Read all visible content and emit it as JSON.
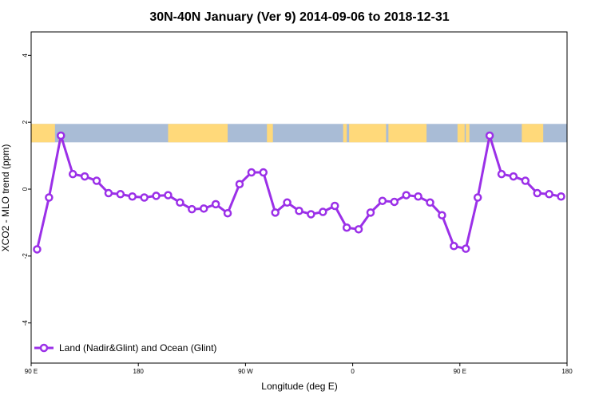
{
  "chart_data": {
    "type": "line",
    "title": "30N-40N January (Ver 9)   2014-09-06 to 2018-12-31",
    "xlabel": "Longitude (deg E)",
    "ylabel": "XCO2 - MLO trend (ppm)",
    "xlim": [
      90,
      540
    ],
    "ylim": [
      -5.2,
      4.7
    ],
    "x_ticks": [
      {
        "value": 90,
        "label": "90 E"
      },
      {
        "value": 180,
        "label": "180"
      },
      {
        "value": 270,
        "label": "90 W"
      },
      {
        "value": 360,
        "label": "0"
      },
      {
        "value": 450,
        "label": "90 E"
      },
      {
        "value": 540,
        "label": "180"
      }
    ],
    "y_ticks": [
      {
        "value": -4,
        "label": "-4"
      },
      {
        "value": -2,
        "label": "-2"
      },
      {
        "value": 0,
        "label": "0"
      },
      {
        "value": 2,
        "label": "2"
      },
      {
        "value": 4,
        "label": "4"
      }
    ],
    "grid": false,
    "legend": {
      "position": "bottom-left"
    },
    "series": [
      {
        "name": "Land (Nadir&Glint) and Ocean (Glint)",
        "color": "#9b30e8",
        "x": [
          95,
          105,
          115,
          125,
          135,
          145,
          155,
          165,
          175,
          185,
          195,
          205,
          215,
          225,
          235,
          245,
          255,
          265,
          275,
          285,
          295,
          305,
          315,
          325,
          335,
          345,
          355,
          365,
          375,
          385,
          395,
          405,
          415,
          425,
          435,
          445,
          455,
          465,
          475,
          485,
          495,
          505,
          515,
          525,
          535
        ],
        "values": [
          -1.8,
          -0.25,
          1.6,
          0.45,
          0.38,
          0.25,
          -0.12,
          -0.15,
          -0.22,
          -0.25,
          -0.2,
          -0.18,
          -0.4,
          -0.6,
          -0.58,
          -0.45,
          -0.72,
          0.15,
          0.5,
          0.5,
          -0.7,
          -0.4,
          -0.65,
          -0.75,
          -0.68,
          -0.5,
          -1.15,
          -1.2,
          -0.7,
          -0.35,
          -0.38,
          -0.18,
          -0.22,
          -0.4,
          -0.78,
          -1.7,
          -1.78,
          -0.25,
          1.6,
          0.45,
          0.38,
          0.25,
          -0.12,
          -0.15,
          -0.22
        ]
      }
    ],
    "map_band": {
      "y_range": [
        1.4,
        1.95
      ],
      "land_color": "#ffd97a",
      "ocean_color": "#a9bcd6"
    }
  }
}
